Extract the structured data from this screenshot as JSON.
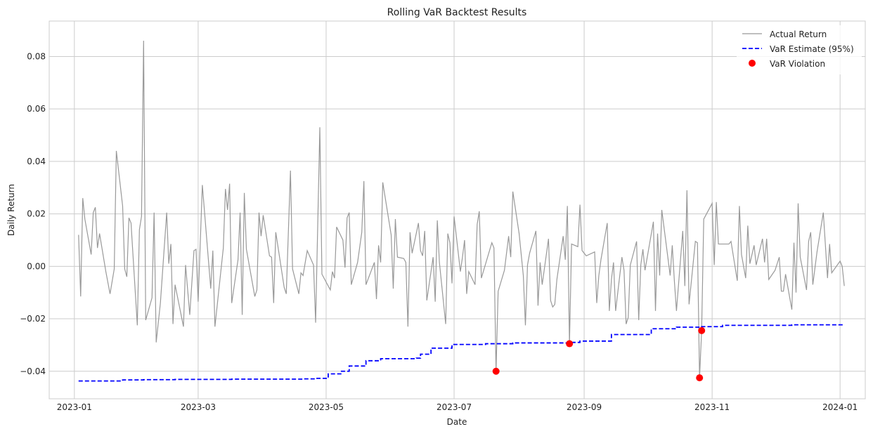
{
  "chart_data": {
    "type": "line",
    "title": "Rolling VaR Backtest Results",
    "xlabel": "Date",
    "ylabel": "Daily Return",
    "xlim": [
      "2022-12-20",
      "2024-01-13"
    ],
    "ylim": [
      -0.0505,
      0.0935
    ],
    "grid": true,
    "legend_position": "top-right",
    "x_ticks": [
      "2023-01",
      "2023-03",
      "2023-05",
      "2023-07",
      "2023-09",
      "2023-11",
      "2024-01"
    ],
    "y_ticks": [
      -0.04,
      -0.02,
      0.0,
      0.02,
      0.04,
      0.06,
      0.08
    ],
    "y_tick_labels": [
      "−0.04",
      "−0.02",
      "0.00",
      "0.02",
      "0.04",
      "0.06",
      "0.08"
    ],
    "series": [
      {
        "name": "Actual Return",
        "kind": "line",
        "color": "#999999",
        "points": [
          [
            "2023-01-03",
            0.012
          ],
          [
            "2023-01-04",
            -0.0115
          ],
          [
            "2023-01-05",
            0.026
          ],
          [
            "2023-01-06",
            0.018
          ],
          [
            "2023-01-09",
            0.0045
          ],
          [
            "2023-01-10",
            0.0205
          ],
          [
            "2023-01-11",
            0.0225
          ],
          [
            "2023-01-12",
            0.007
          ],
          [
            "2023-01-13",
            0.0125
          ],
          [
            "2023-01-16",
            -0.002
          ],
          [
            "2023-01-18",
            -0.0105
          ],
          [
            "2023-01-20",
            -0.001
          ],
          [
            "2023-01-21",
            0.044
          ],
          [
            "2023-01-24",
            0.023
          ],
          [
            "2023-01-25",
            -0.001
          ],
          [
            "2023-01-26",
            -0.004
          ],
          [
            "2023-01-27",
            0.0185
          ],
          [
            "2023-01-28",
            0.0165
          ],
          [
            "2023-01-31",
            -0.0225
          ],
          [
            "2023-02-01",
            0.014
          ],
          [
            "2023-02-02",
            0.019
          ],
          [
            "2023-02-03",
            0.086
          ],
          [
            "2023-02-04",
            -0.0205
          ],
          [
            "2023-02-07",
            -0.012
          ],
          [
            "2023-02-08",
            0.0205
          ],
          [
            "2023-02-09",
            -0.029
          ],
          [
            "2023-02-11",
            -0.014
          ],
          [
            "2023-02-14",
            0.0205
          ],
          [
            "2023-02-15",
            0.001
          ],
          [
            "2023-02-16",
            0.0085
          ],
          [
            "2023-02-17",
            -0.022
          ],
          [
            "2023-02-18",
            -0.007
          ],
          [
            "2023-02-22",
            -0.023
          ],
          [
            "2023-02-23",
            0.0005
          ],
          [
            "2023-02-25",
            -0.0185
          ],
          [
            "2023-02-27",
            0.006
          ],
          [
            "2023-02-28",
            0.0065
          ],
          [
            "2023-03-01",
            -0.0135
          ],
          [
            "2023-03-03",
            0.031
          ],
          [
            "2023-03-07",
            -0.0085
          ],
          [
            "2023-03-08",
            0.006
          ],
          [
            "2023-03-09",
            -0.023
          ],
          [
            "2023-03-13",
            0.007
          ],
          [
            "2023-03-14",
            0.0295
          ],
          [
            "2023-03-15",
            0.0215
          ],
          [
            "2023-03-16",
            0.0315
          ],
          [
            "2023-03-17",
            -0.014
          ],
          [
            "2023-03-20",
            0.0025
          ],
          [
            "2023-03-21",
            0.0205
          ],
          [
            "2023-03-22",
            -0.0185
          ],
          [
            "2023-03-23",
            0.028
          ],
          [
            "2023-03-24",
            0.0065
          ],
          [
            "2023-03-28",
            -0.0115
          ],
          [
            "2023-03-29",
            -0.009
          ],
          [
            "2023-03-30",
            0.0205
          ],
          [
            "2023-03-31",
            0.0115
          ],
          [
            "2023-04-01",
            0.0195
          ],
          [
            "2023-04-04",
            0.004
          ],
          [
            "2023-04-05",
            0.0035
          ],
          [
            "2023-04-06",
            -0.014
          ],
          [
            "2023-04-07",
            0.013
          ],
          [
            "2023-04-11",
            -0.008
          ],
          [
            "2023-04-12",
            -0.0105
          ],
          [
            "2023-04-14",
            0.0365
          ],
          [
            "2023-04-15",
            -0.001
          ],
          [
            "2023-04-18",
            -0.0105
          ],
          [
            "2023-04-19",
            -0.0025
          ],
          [
            "2023-04-20",
            -0.0035
          ],
          [
            "2023-04-22",
            0.006
          ],
          [
            "2023-04-25",
            0.0005
          ],
          [
            "2023-04-26",
            -0.0215
          ],
          [
            "2023-04-28",
            0.053
          ],
          [
            "2023-04-29",
            -0.003
          ],
          [
            "2023-05-03",
            -0.009
          ],
          [
            "2023-05-04",
            -0.002
          ],
          [
            "2023-05-05",
            -0.0045
          ],
          [
            "2023-05-06",
            0.015
          ],
          [
            "2023-05-09",
            0.01
          ],
          [
            "2023-05-10",
            -0.0005
          ],
          [
            "2023-05-11",
            0.0185
          ],
          [
            "2023-05-12",
            0.0205
          ],
          [
            "2023-05-13",
            -0.007
          ],
          [
            "2023-05-16",
            0.0015
          ],
          [
            "2023-05-18",
            0.013
          ],
          [
            "2023-05-19",
            0.0325
          ],
          [
            "2023-05-20",
            -0.007
          ],
          [
            "2023-05-24",
            0.0015
          ],
          [
            "2023-05-25",
            -0.0125
          ],
          [
            "2023-05-26",
            0.008
          ],
          [
            "2023-05-27",
            0.0015
          ],
          [
            "2023-05-28",
            0.032
          ],
          [
            "2023-06-01",
            0.012
          ],
          [
            "2023-06-02",
            -0.0085
          ],
          [
            "2023-06-03",
            0.018
          ],
          [
            "2023-06-04",
            0.0035
          ],
          [
            "2023-06-07",
            0.003
          ],
          [
            "2023-06-08",
            0.0015
          ],
          [
            "2023-06-09",
            -0.023
          ],
          [
            "2023-06-10",
            0.013
          ],
          [
            "2023-06-11",
            0.005
          ],
          [
            "2023-06-14",
            0.0165
          ],
          [
            "2023-06-15",
            0.006
          ],
          [
            "2023-06-16",
            0.004
          ],
          [
            "2023-06-17",
            0.0135
          ],
          [
            "2023-06-18",
            -0.013
          ],
          [
            "2023-06-21",
            0.0035
          ],
          [
            "2023-06-22",
            -0.0135
          ],
          [
            "2023-06-23",
            0.0175
          ],
          [
            "2023-06-24",
            0.0015
          ],
          [
            "2023-06-27",
            -0.022
          ],
          [
            "2023-06-28",
            0.0125
          ],
          [
            "2023-06-29",
            0.009
          ],
          [
            "2023-06-30",
            -0.0065
          ],
          [
            "2023-07-01",
            0.019
          ],
          [
            "2023-07-04",
            -0.002
          ],
          [
            "2023-07-05",
            0.0035
          ],
          [
            "2023-07-06",
            0.01
          ],
          [
            "2023-07-07",
            -0.0105
          ],
          [
            "2023-07-08",
            -0.002
          ],
          [
            "2023-07-11",
            -0.007
          ],
          [
            "2023-07-12",
            0.016
          ],
          [
            "2023-07-13",
            0.021
          ],
          [
            "2023-07-14",
            -0.0045
          ],
          [
            "2023-07-19",
            0.009
          ],
          [
            "2023-07-20",
            0.007
          ],
          [
            "2023-07-21",
            -0.04
          ],
          [
            "2023-07-22",
            -0.0095
          ],
          [
            "2023-07-25",
            -0.0015
          ],
          [
            "2023-07-27",
            0.0115
          ],
          [
            "2023-07-28",
            0.0035
          ],
          [
            "2023-07-29",
            0.0285
          ],
          [
            "2023-08-01",
            0.0125
          ],
          [
            "2023-08-03",
            -0.0035
          ],
          [
            "2023-08-04",
            -0.0225
          ],
          [
            "2023-08-05",
            0.0005
          ],
          [
            "2023-08-06",
            0.005
          ],
          [
            "2023-08-09",
            0.0135
          ],
          [
            "2023-08-10",
            -0.015
          ],
          [
            "2023-08-11",
            0.0015
          ],
          [
            "2023-08-12",
            -0.007
          ],
          [
            "2023-08-15",
            0.0105
          ],
          [
            "2023-08-16",
            -0.013
          ],
          [
            "2023-08-17",
            -0.0155
          ],
          [
            "2023-08-18",
            -0.0145
          ],
          [
            "2023-08-19",
            -0.005
          ],
          [
            "2023-08-22",
            0.0115
          ],
          [
            "2023-08-23",
            0.0025
          ],
          [
            "2023-08-24",
            0.023
          ],
          [
            "2023-08-25",
            -0.0295
          ],
          [
            "2023-08-26",
            0.0085
          ],
          [
            "2023-08-29",
            0.0075
          ],
          [
            "2023-08-30",
            0.0235
          ],
          [
            "2023-08-31",
            0.006
          ],
          [
            "2023-09-01",
            0.005
          ],
          [
            "2023-09-02",
            0.004
          ],
          [
            "2023-09-06",
            0.0055
          ],
          [
            "2023-09-07",
            -0.014
          ],
          [
            "2023-09-08",
            -0.0035
          ],
          [
            "2023-09-09",
            0.0025
          ],
          [
            "2023-09-12",
            0.0165
          ],
          [
            "2023-09-13",
            -0.017
          ],
          [
            "2023-09-14",
            -0.005
          ],
          [
            "2023-09-15",
            0.0015
          ],
          [
            "2023-09-16",
            -0.017
          ],
          [
            "2023-09-19",
            0.0035
          ],
          [
            "2023-09-20",
            -0.0015
          ],
          [
            "2023-09-21",
            -0.022
          ],
          [
            "2023-09-22",
            -0.0195
          ],
          [
            "2023-09-23",
            0.0005
          ],
          [
            "2023-09-26",
            0.0095
          ],
          [
            "2023-09-27",
            -0.0205
          ],
          [
            "2023-09-28",
            0.0005
          ],
          [
            "2023-09-29",
            0.0065
          ],
          [
            "2023-09-30",
            -0.0015
          ],
          [
            "2023-10-04",
            0.017
          ],
          [
            "2023-10-05",
            -0.017
          ],
          [
            "2023-10-06",
            0.0125
          ],
          [
            "2023-10-07",
            -0.0035
          ],
          [
            "2023-10-08",
            0.0215
          ],
          [
            "2023-10-12",
            -0.0035
          ],
          [
            "2023-10-13",
            0.008
          ],
          [
            "2023-10-14",
            -0.0055
          ],
          [
            "2023-10-15",
            -0.017
          ],
          [
            "2023-10-18",
            0.0135
          ],
          [
            "2023-10-19",
            -0.0075
          ],
          [
            "2023-10-20",
            0.029
          ],
          [
            "2023-10-21",
            -0.0145
          ],
          [
            "2023-10-24",
            0.0095
          ],
          [
            "2023-10-25",
            0.009
          ],
          [
            "2023-10-26",
            -0.0425
          ],
          [
            "2023-10-27",
            -0.0245
          ],
          [
            "2023-10-28",
            0.018
          ],
          [
            "2023-11-01",
            0.024
          ],
          [
            "2023-11-02",
            0.0005
          ],
          [
            "2023-11-03",
            0.0245
          ],
          [
            "2023-11-04",
            0.0085
          ],
          [
            "2023-11-05",
            0.0085
          ],
          [
            "2023-11-07",
            0.0085
          ],
          [
            "2023-11-09",
            0.0085
          ],
          [
            "2023-11-10",
            0.0095
          ],
          [
            "2023-11-13",
            -0.0055
          ],
          [
            "2023-11-14",
            0.023
          ],
          [
            "2023-11-15",
            0.0045
          ],
          [
            "2023-11-17",
            -0.0045
          ],
          [
            "2023-11-18",
            0.0155
          ],
          [
            "2023-11-19",
            0.001
          ],
          [
            "2023-11-21",
            0.008
          ],
          [
            "2023-11-22",
            0.0005
          ],
          [
            "2023-11-25",
            0.0105
          ],
          [
            "2023-11-26",
            0.0015
          ],
          [
            "2023-11-27",
            0.0105
          ],
          [
            "2023-11-28",
            -0.005
          ],
          [
            "2023-12-01",
            -0.0015
          ],
          [
            "2023-12-03",
            0.0035
          ],
          [
            "2023-12-04",
            -0.0095
          ],
          [
            "2023-12-05",
            -0.0095
          ],
          [
            "2023-12-06",
            -0.003
          ],
          [
            "2023-12-09",
            -0.0165
          ],
          [
            "2023-12-10",
            0.009
          ],
          [
            "2023-12-11",
            -0.01
          ],
          [
            "2023-12-12",
            0.024
          ],
          [
            "2023-12-13",
            0.0035
          ],
          [
            "2023-12-16",
            -0.009
          ],
          [
            "2023-12-17",
            0.0095
          ],
          [
            "2023-12-18",
            0.013
          ],
          [
            "2023-12-19",
            -0.007
          ],
          [
            "2023-12-21",
            0.0055
          ],
          [
            "2023-12-24",
            0.0205
          ],
          [
            "2023-12-26",
            -0.0045
          ],
          [
            "2023-12-27",
            0.0085
          ],
          [
            "2023-12-28",
            -0.0025
          ],
          [
            "2024-01-01",
            0.002
          ],
          [
            "2024-01-02",
            0.0
          ],
          [
            "2024-01-03",
            -0.0075
          ]
        ]
      },
      {
        "name": "VaR Estimate (95%)",
        "kind": "step-line",
        "color": "#0000ff",
        "points": [
          [
            "2023-01-03",
            -0.0437
          ],
          [
            "2023-01-21",
            -0.0437
          ],
          [
            "2023-01-24",
            -0.0433
          ],
          [
            "2023-02-03",
            -0.0432
          ],
          [
            "2023-02-18",
            -0.0431
          ],
          [
            "2023-03-17",
            -0.043
          ],
          [
            "2023-04-20",
            -0.0429
          ],
          [
            "2023-04-26",
            -0.0427
          ],
          [
            "2023-05-02",
            -0.041
          ],
          [
            "2023-05-08",
            -0.04
          ],
          [
            "2023-05-12",
            -0.038
          ],
          [
            "2023-05-20",
            -0.036
          ],
          [
            "2023-05-27",
            -0.0352
          ],
          [
            "2023-06-13",
            -0.035
          ],
          [
            "2023-06-15",
            -0.0335
          ],
          [
            "2023-06-20",
            -0.0312
          ],
          [
            "2023-06-30",
            -0.0298
          ],
          [
            "2023-07-16",
            -0.0295
          ],
          [
            "2023-07-29",
            -0.0292
          ],
          [
            "2023-08-26",
            -0.029
          ],
          [
            "2023-08-30",
            -0.0285
          ],
          [
            "2023-09-14",
            -0.026
          ],
          [
            "2023-10-03",
            -0.0238
          ],
          [
            "2023-10-15",
            -0.0232
          ],
          [
            "2023-10-27",
            -0.023
          ],
          [
            "2023-11-06",
            -0.0225
          ],
          [
            "2023-12-09",
            -0.0223
          ],
          [
            "2024-01-03",
            -0.0222
          ]
        ]
      },
      {
        "name": "VaR Violation",
        "kind": "scatter",
        "color": "#ff0000",
        "points": [
          [
            "2023-07-21",
            -0.04
          ],
          [
            "2023-08-25",
            -0.0295
          ],
          [
            "2023-10-26",
            -0.0425
          ],
          [
            "2023-10-27",
            -0.0245
          ]
        ]
      }
    ]
  }
}
